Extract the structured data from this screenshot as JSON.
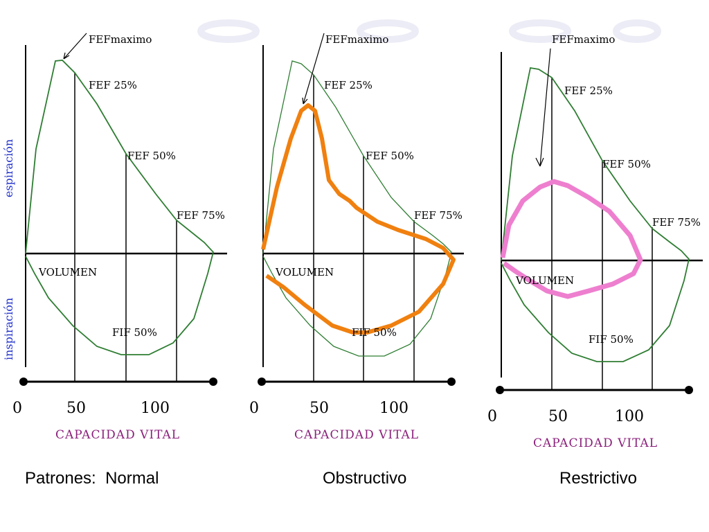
{
  "side_labels": {
    "top": "espiración",
    "bottom": "inspiración"
  },
  "panels": [
    {
      "fef_max": "FEFmaximo",
      "fef25": "FEF 25%",
      "fef50": "FEF 50%",
      "fef75": "FEF 75%",
      "volumen": "VOLUMEN",
      "fif50": "FIF 50%",
      "ticks": [
        "0",
        "50",
        "100"
      ],
      "xlabel": "CAPACIDAD VITAL"
    },
    {
      "fef_max": "FEFmaximo",
      "fef25": "FEF 25%",
      "fef50": "FEF 50%",
      "fef75": "FEF 75%",
      "volumen": "VOLUMEN",
      "fif50": "FIF 50%",
      "ticks": [
        "0",
        "50",
        "100"
      ],
      "xlabel": "CAPACIDAD VITAL"
    },
    {
      "fef_max": "FEFmaximo",
      "fef25": "FEF 25%",
      "fef50": "FEF 50%",
      "fef75": "FEF 75%",
      "volumen": "VOLUMEN",
      "fif50": "FIF 50%",
      "ticks": [
        "0",
        "50",
        "100"
      ],
      "xlabel": "CAPACIDAD VITAL"
    }
  ],
  "captions": [
    "Patrones:  Normal",
    "Obstructivo",
    "Restrictivo"
  ],
  "colors": {
    "normal_curve": "#2e7d32",
    "obstructive_curve": "#f0800f",
    "restrictive_curve": "#ee7fcf",
    "axis": "#000000",
    "side_label": "#2233cc",
    "xlabel": "#8a1f7a"
  }
}
